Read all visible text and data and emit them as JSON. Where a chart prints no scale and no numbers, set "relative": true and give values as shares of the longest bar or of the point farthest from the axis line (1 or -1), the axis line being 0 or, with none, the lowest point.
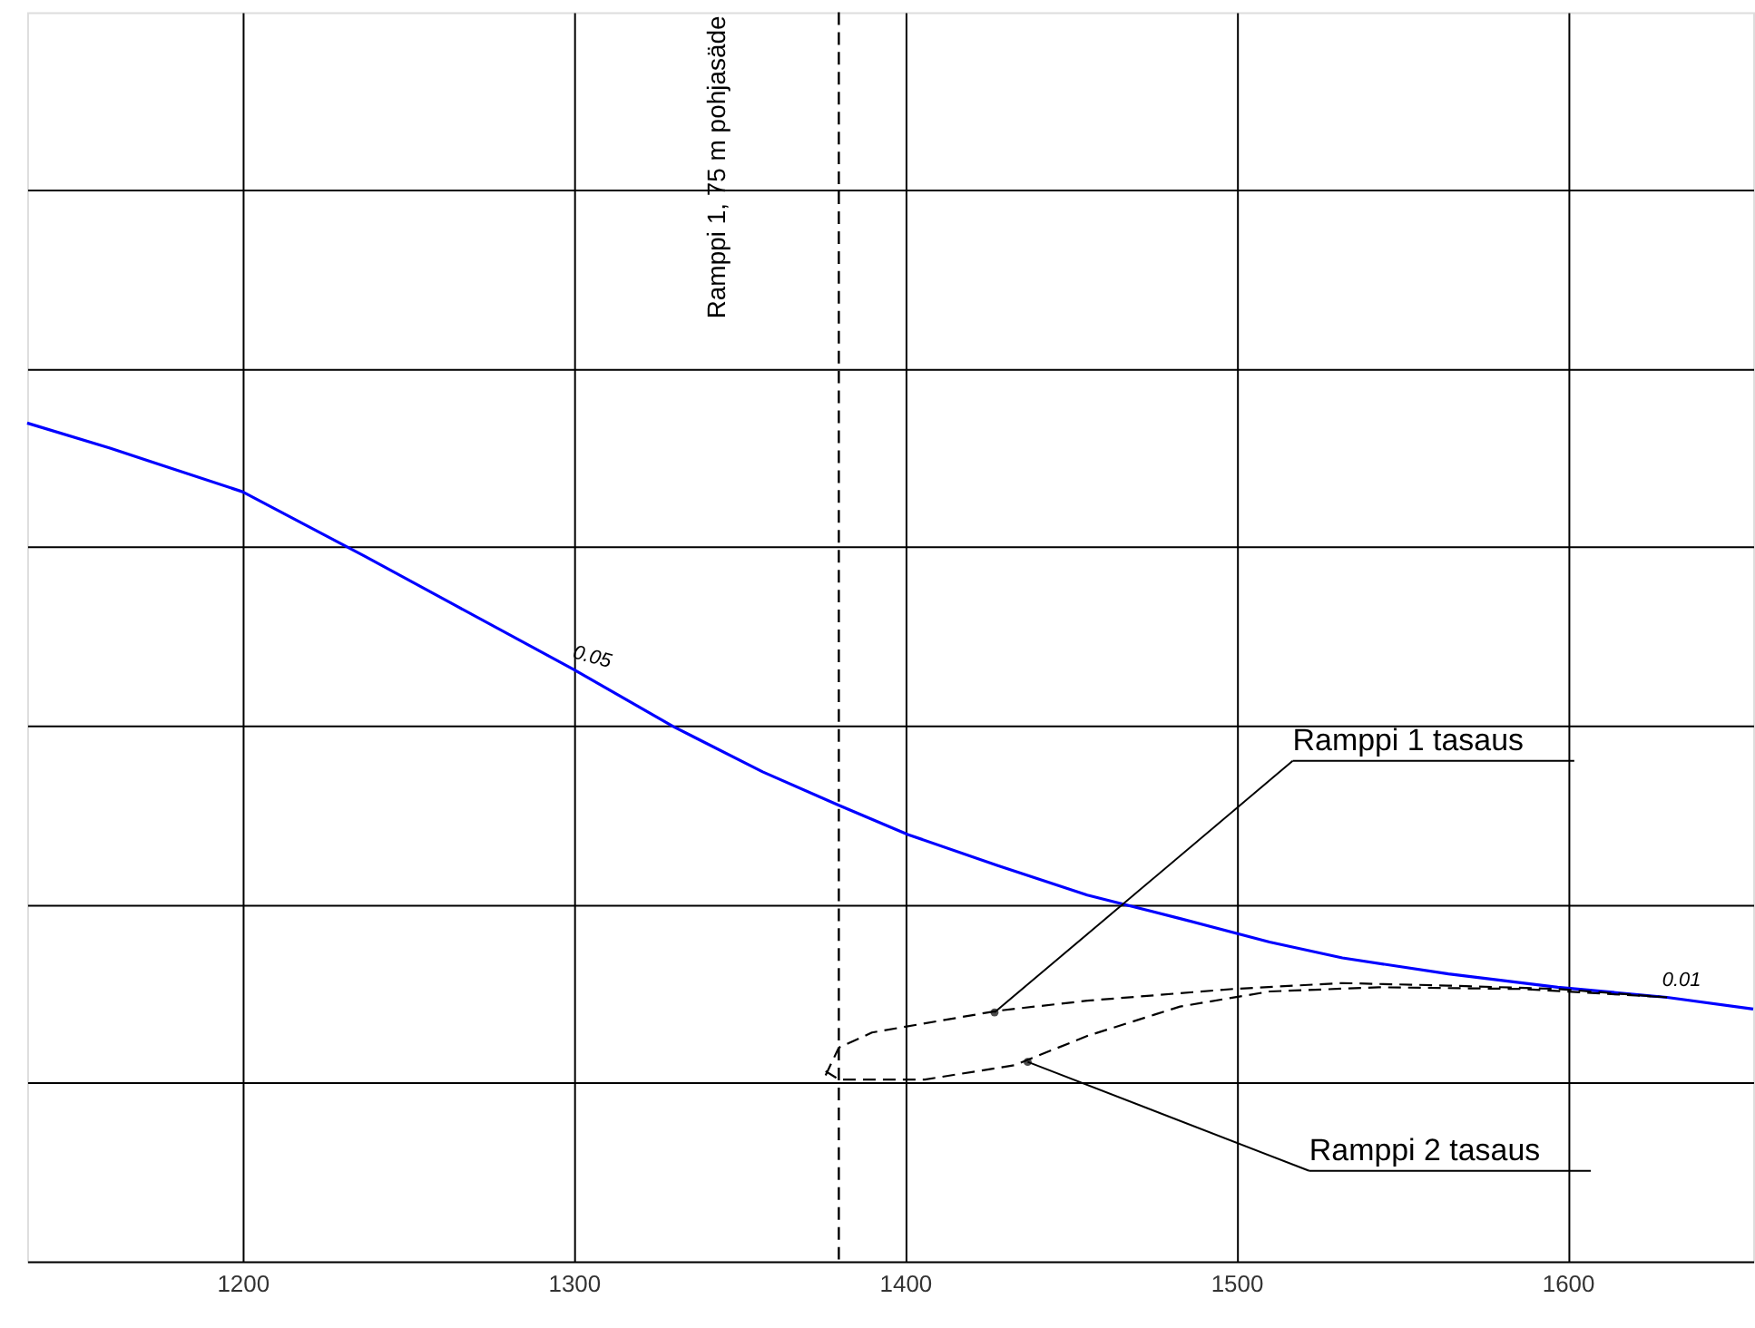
{
  "chart_data": {
    "type": "line",
    "relative": true,
    "xlim": [
      1135,
      1656
    ],
    "xticks": [
      1200,
      1300,
      1400,
      1500,
      1600
    ],
    "grid": true,
    "marker": "none",
    "series": [
      {
        "color": "#0000ff",
        "line_style": "solid",
        "x": [
          1135,
          1160,
          1200,
          1237,
          1264,
          1300,
          1330,
          1357,
          1380,
          1401,
          1428,
          1455,
          1483,
          1510,
          1532,
          1564,
          1597,
          1630,
          1656
        ],
        "values": [
          1.0,
          0.97,
          0.918,
          0.841,
          0.783,
          0.706,
          0.638,
          0.584,
          0.544,
          0.509,
          0.472,
          0.437,
          0.409,
          0.381,
          0.362,
          0.343,
          0.327,
          0.315,
          0.301
        ]
      },
      {
        "color": "#000000",
        "line_style": "dashed",
        "x": [
          1376,
          1380,
          1390,
          1428,
          1455,
          1499,
          1532,
          1564,
          1597,
          1630
        ],
        "values": [
          0.222,
          0.255,
          0.273,
          0.299,
          0.311,
          0.325,
          0.332,
          0.329,
          0.325,
          0.315
        ]
      },
      {
        "color": "#000000",
        "line_style": "dashed",
        "x": [
          1376,
          1380,
          1406,
          1433,
          1455,
          1483,
          1510,
          1543,
          1586,
          1630
        ],
        "values": [
          0.227,
          0.217,
          0.217,
          0.234,
          0.269,
          0.304,
          0.322,
          0.327,
          0.325,
          0.315
        ]
      }
    ],
    "ref_lines": [
      {
        "axis": "x",
        "value": 1380,
        "label": "Ramppi 1, 75 m pohjasäde",
        "color": "#000000",
        "line_style": "dashed"
      }
    ],
    "annotations": [
      {
        "text": "Ramppi 1 tasaus",
        "x": 1427,
        "y": 0.297
      },
      {
        "text": "Ramppi 2 tasaus",
        "x": 1437,
        "y": 0.238
      },
      {
        "text": "0.05",
        "x": 1300,
        "y": 0.706
      },
      {
        "text": "0.01",
        "x": 1630,
        "y": 0.315
      }
    ]
  }
}
